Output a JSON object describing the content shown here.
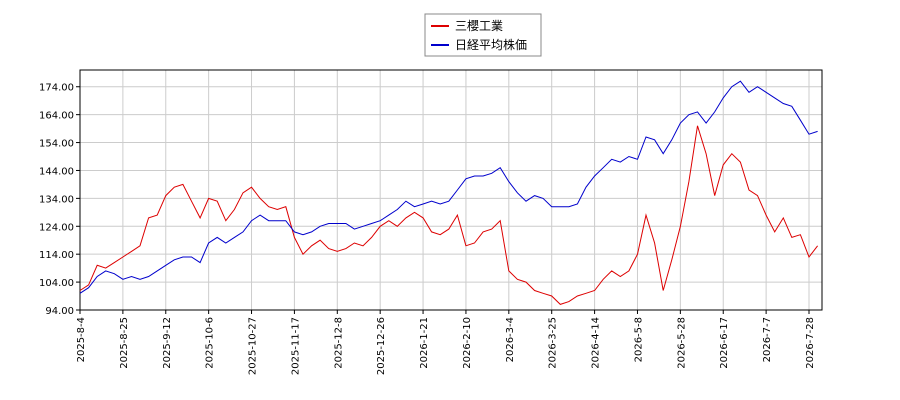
{
  "chart_data": {
    "type": "line",
    "categories": [
      "2025-8-4",
      null,
      null,
      null,
      null,
      "2025-8-25",
      null,
      null,
      null,
      null,
      "2025-9-12",
      null,
      null,
      null,
      null,
      "2025-10-6",
      null,
      null,
      null,
      null,
      "2025-10-27",
      null,
      null,
      null,
      null,
      "2025-11-17",
      null,
      null,
      null,
      null,
      "2025-12-8",
      null,
      null,
      null,
      null,
      "2025-12-26",
      null,
      null,
      null,
      null,
      "2026-1-21",
      null,
      null,
      null,
      null,
      "2026-2-10",
      null,
      null,
      null,
      null,
      "2026-3-4",
      null,
      null,
      null,
      null,
      "2026-3-25",
      null,
      null,
      null,
      null,
      "2026-4-14",
      null,
      null,
      null,
      null,
      "2026-5-8",
      null,
      null,
      null,
      null,
      "2026-5-28",
      null,
      null,
      null,
      null,
      "2026-6-17",
      null,
      null,
      null,
      null,
      "2026-7-7",
      null,
      null,
      null,
      null,
      "2026-7-28",
      null
    ],
    "series": [
      {
        "name": "三櫻工業",
        "color": "#dd0000",
        "values": [
          101,
          103,
          110,
          109,
          111,
          113,
          115,
          117,
          127,
          128,
          135,
          138,
          139,
          133,
          127,
          134,
          133,
          126,
          130,
          136,
          138,
          134,
          131,
          130,
          131,
          120,
          114,
          117,
          119,
          116,
          115,
          116,
          118,
          117,
          120,
          124,
          126,
          124,
          127,
          129,
          127,
          122,
          121,
          123,
          128,
          117,
          118,
          122,
          123,
          126,
          108,
          105,
          104,
          101,
          100,
          99,
          96,
          97,
          99,
          100,
          101,
          105,
          108,
          106,
          108,
          114,
          128,
          118,
          101,
          112,
          124,
          140,
          160,
          150,
          135,
          146,
          150,
          147,
          137,
          135,
          128,
          122,
          127,
          120,
          121,
          113,
          117
        ]
      },
      {
        "name": "日経平均株価",
        "color": "#0000cc",
        "values": [
          100,
          102,
          106,
          108,
          107,
          105,
          106,
          105,
          106,
          108,
          110,
          112,
          113,
          113,
          111,
          118,
          120,
          118,
          120,
          122,
          126,
          128,
          126,
          126,
          126,
          122,
          121,
          122,
          124,
          125,
          125,
          125,
          123,
          124,
          125,
          126,
          128,
          130,
          133,
          131,
          132,
          133,
          132,
          133,
          137,
          141,
          142,
          142,
          143,
          145,
          140,
          136,
          133,
          135,
          134,
          131,
          131,
          131,
          132,
          138,
          142,
          145,
          148,
          147,
          149,
          148,
          156,
          155,
          150,
          155,
          161,
          164,
          165,
          161,
          165,
          170,
          174,
          176,
          172,
          174,
          172,
          170,
          168,
          167,
          162,
          157,
          158
        ]
      }
    ],
    "ylim": [
      94,
      180
    ],
    "yticks": [
      {
        "value": 94,
        "label": "94.00"
      },
      {
        "value": 104,
        "label": "104.00"
      },
      {
        "value": 114,
        "label": "114.00"
      },
      {
        "value": 124,
        "label": "124.00"
      },
      {
        "value": 134,
        "label": "134.00"
      },
      {
        "value": 144,
        "label": "144.00"
      },
      {
        "value": 154,
        "label": "154.00"
      },
      {
        "value": 164,
        "label": "164.00"
      },
      {
        "value": 174,
        "label": "174.00"
      }
    ],
    "grid": true,
    "legend": "top"
  }
}
